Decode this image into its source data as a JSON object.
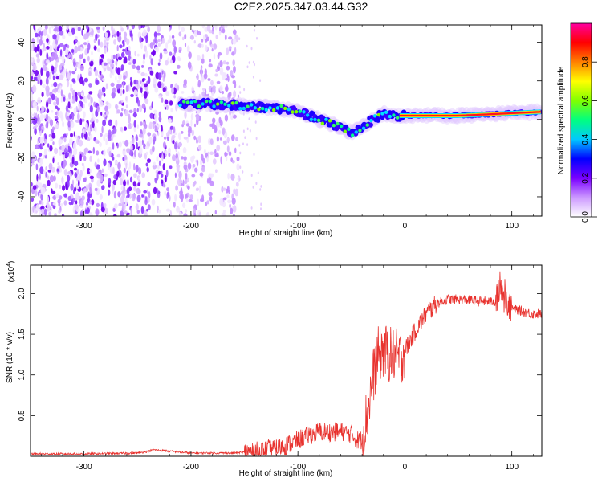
{
  "title": "C2E2.2025.347.03.44.G32",
  "chart_data": [
    {
      "type": "heatmap",
      "title": "C2E2.2025.347.03.44.G32",
      "xlabel": "Height of straight line (km)",
      "ylabel": "Frequency (Hz)",
      "xlim": [
        -350,
        128
      ],
      "ylim": [
        -50,
        49
      ],
      "xticks": [
        -300,
        -200,
        -100,
        0,
        100
      ],
      "yticks": [
        -40,
        -20,
        0,
        20,
        40
      ],
      "colorbar": {
        "label": "Normalized spectral amplitude",
        "range": [
          0,
          1
        ],
        "ticks": [
          "0.0",
          "0.2",
          "0.4",
          "0.6",
          "0.8"
        ],
        "colors": [
          "#ffffff",
          "#cc99ff",
          "#7a00ff",
          "#0000ff",
          "#00c8ff",
          "#00ff80",
          "#80ff00",
          "#ffff00",
          "#ff8000",
          "#ff0000",
          "#ff00a0"
        ]
      },
      "ridge": {
        "description": "narrowband tone track",
        "points": [
          {
            "x": -210,
            "y": 8
          },
          {
            "x": -180,
            "y": 8
          },
          {
            "x": -150,
            "y": 7
          },
          {
            "x": -120,
            "y": 6
          },
          {
            "x": -100,
            "y": 4
          },
          {
            "x": -80,
            "y": 0
          },
          {
            "x": -60,
            "y": -4
          },
          {
            "x": -50,
            "y": -7
          },
          {
            "x": -40,
            "y": -4
          },
          {
            "x": -30,
            "y": 0
          },
          {
            "x": -20,
            "y": 3
          },
          {
            "x": -10,
            "y": 2
          },
          {
            "x": 0,
            "y": 2
          },
          {
            "x": 50,
            "y": 2
          },
          {
            "x": 90,
            "y": 3
          },
          {
            "x": 128,
            "y": 4
          }
        ]
      },
      "noise_region_x": [
        -350,
        -155
      ]
    },
    {
      "type": "line",
      "xlabel": "Height of straight line (km)",
      "ylabel": "SNR (10 * v/v)",
      "scale_label": "(x10",
      "scale_exponent": "4",
      "scale_suffix": ")",
      "xlim": [
        -350,
        128
      ],
      "ylim": [
        0,
        2.35
      ],
      "xticks": [
        -300,
        -200,
        -100,
        0,
        100
      ],
      "yticks": [
        "0.5",
        "1.0",
        "1.5",
        "2.0"
      ],
      "color": "#e8322e",
      "series": [
        {
          "name": "SNR (x10^4)",
          "x": [
            -350,
            -300,
            -250,
            -240,
            -235,
            -200,
            -160,
            -140,
            -120,
            -110,
            -100,
            -90,
            -80,
            -70,
            -60,
            -50,
            -45,
            -40,
            -35,
            -30,
            -25,
            -20,
            -15,
            -10,
            -5,
            0,
            10,
            20,
            30,
            40,
            50,
            60,
            70,
            80,
            85,
            90,
            95,
            100,
            110,
            120,
            128
          ],
          "y": [
            0.03,
            0.03,
            0.04,
            0.06,
            0.08,
            0.04,
            0.04,
            0.06,
            0.1,
            0.14,
            0.2,
            0.26,
            0.3,
            0.3,
            0.3,
            0.28,
            0.2,
            0.2,
            0.55,
            0.95,
            1.25,
            1.3,
            1.25,
            1.25,
            1.2,
            1.3,
            1.55,
            1.75,
            1.88,
            1.93,
            1.93,
            1.92,
            1.91,
            1.9,
            1.9,
            2.1,
            1.9,
            1.82,
            1.78,
            1.75,
            1.75
          ]
        }
      ]
    }
  ]
}
